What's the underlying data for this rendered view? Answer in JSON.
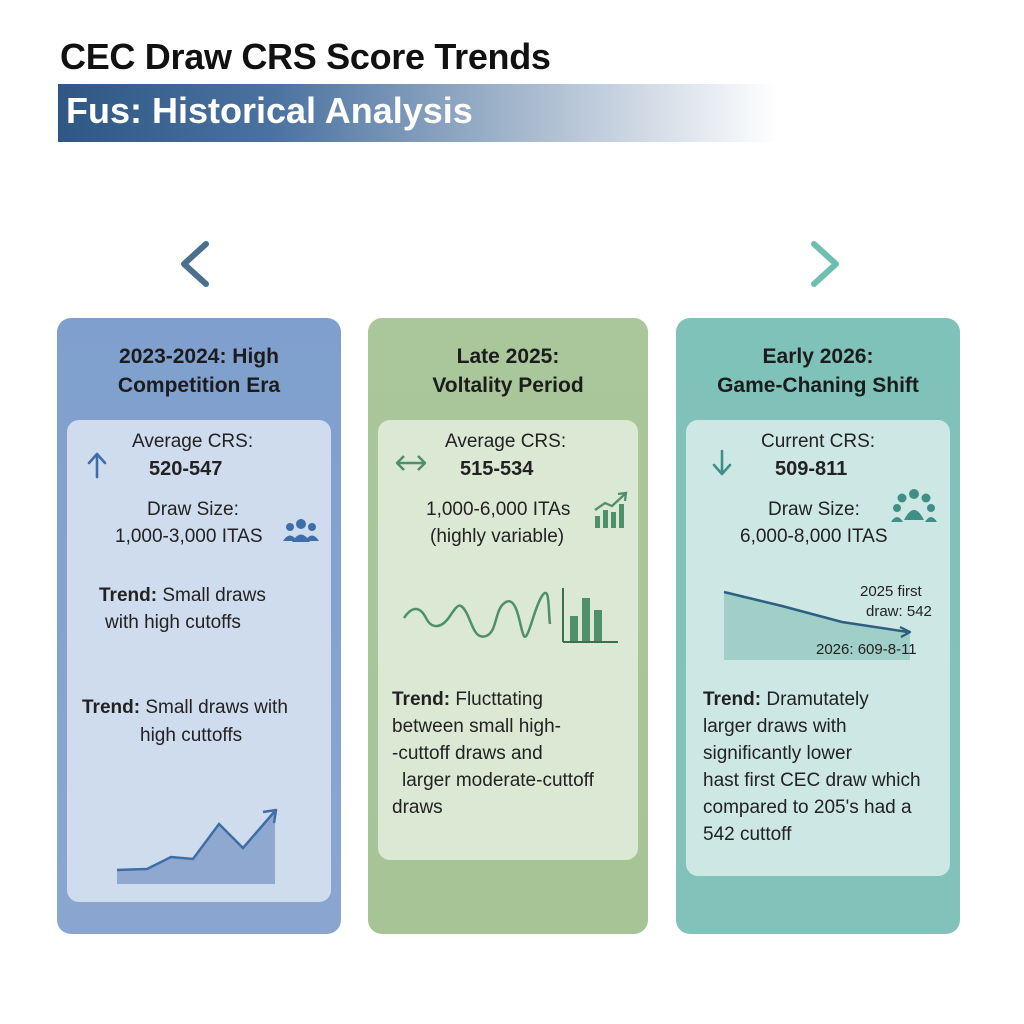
{
  "header": {
    "title": "CEC Draw CRS Score Trends",
    "subtitle": "Fus: Historical Analysis"
  },
  "columns": [
    {
      "title_line1": "2023-2024: High",
      "title_line2": "Competition Era",
      "crs_label": "Average CRS:",
      "crs_range": "520-547",
      "draw_label": "Draw Size:",
      "draw_value": "1,000-3,000 ITAS",
      "trend1_label": "Trend:",
      "trend1_line1": "Small draws",
      "trend1_line2": "with high cutoffs",
      "trend2_label": "Trend:",
      "trend2_line1": "Small draws with",
      "trend2_line2": "high cuttoffs"
    },
    {
      "title_line1": "Late 2025:",
      "title_line2": "Voltality Period",
      "crs_label": "Average CRS:",
      "crs_range": "515-534",
      "draw_line1": "1,000-6,000 ITAs",
      "draw_line2": "(highly variable)",
      "trend_label": "Trend:",
      "trend_lines": [
        "Flucttating",
        "between small high-",
        "-cuttoff draws and",
        "larger moderate-cuttoff",
        "draws"
      ]
    },
    {
      "title_line1": "Early 2026:",
      "title_line2": "Game-Chaning Shift",
      "crs_label": "Current CRS:",
      "crs_range": "509-811",
      "draw_label": "Draw Size:",
      "draw_value": "6,000-8,000 ITAS",
      "chart_note_line1": "2025 first",
      "chart_note_line2": "draw: 542",
      "chart_note_bottom": "2026: 609-8-11",
      "trend_label": "Trend:",
      "trend_lines": [
        "Dramutately",
        "larger draws with",
        "significantly lower",
        "hast first CEC draw which",
        "compared to 205's had a",
        "542 cuttoff"
      ]
    }
  ],
  "colors": {
    "col1": "#7f9fce",
    "col2": "#a9c79a",
    "col3": "#7fc2ba",
    "blue_icon": "#3e6ea8",
    "green_icon": "#4f8f6a",
    "teal_icon": "#3f8f86"
  },
  "icons": [
    "arrow-up-icon",
    "people-icon",
    "double-arrow-icon",
    "growth-bars-icon",
    "wave-icon",
    "bar-chart-icon",
    "arrow-down-icon",
    "group-icon",
    "area-chart-icon",
    "timeline-arrow"
  ]
}
